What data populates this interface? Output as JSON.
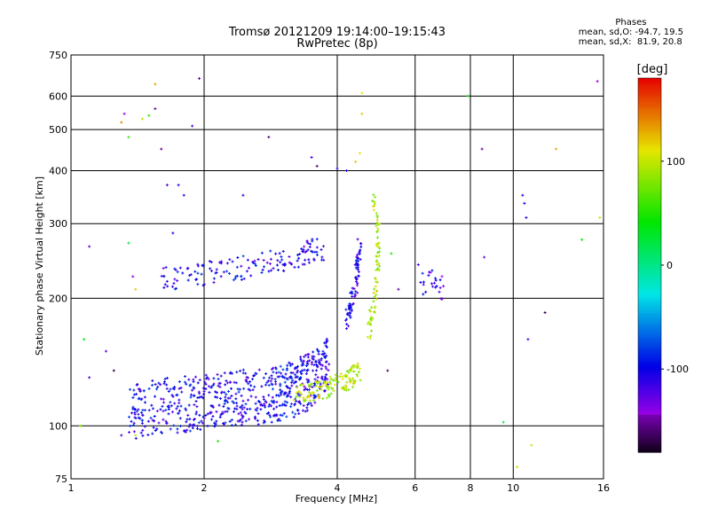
{
  "chart_data": {
    "type": "scatter",
    "title": "Tromsø 20121209 19:14:00–19:15:43",
    "subtitle": "RwPretec (8p)",
    "xlabel": "Frequency [MHz]",
    "ylabel": "Stationary phase Virtual Height [km]",
    "x_scale": "log",
    "y_scale": "log",
    "xlim": [
      1,
      16
    ],
    "ylim": [
      75,
      750
    ],
    "x_ticks": [
      1,
      2,
      4,
      6,
      8,
      10,
      16
    ],
    "y_ticks": [
      75,
      100,
      200,
      300,
      400,
      500,
      600,
      750
    ],
    "grid": true,
    "stats": {
      "heading": "Phases",
      "line_o": "mean, sd,O: -94.7, 19.5",
      "line_x": "mean, sd,X:  81.9, 20.8"
    },
    "colorbar": {
      "label": "[deg]",
      "ticks": [
        100,
        0,
        -100
      ],
      "range": [
        -180,
        180
      ],
      "colormap": "rainbow"
    },
    "series": [
      {
        "type": "band",
        "description": "E/F1 low trace",
        "points": [
          [
            1.35,
            108,
            -105
          ],
          [
            1.5,
            110,
            -100
          ],
          [
            1.7,
            112,
            -105
          ],
          [
            1.9,
            113,
            -100
          ],
          [
            2.1,
            115,
            -110
          ],
          [
            2.3,
            116,
            -100
          ],
          [
            2.5,
            117,
            -105
          ],
          [
            2.8,
            118,
            -100
          ],
          [
            3.0,
            120,
            -95
          ],
          [
            3.2,
            122,
            -100
          ],
          [
            3.4,
            126,
            -110
          ],
          [
            3.6,
            132,
            -105
          ],
          [
            3.8,
            140,
            -110
          ]
        ],
        "spread": 0.07,
        "count_per_segment": 55
      },
      {
        "type": "band",
        "description": "F1 X trace",
        "points": [
          [
            3.2,
            118,
            95
          ],
          [
            3.5,
            120,
            100
          ],
          [
            3.8,
            123,
            95
          ],
          [
            4.1,
            126,
            90
          ],
          [
            4.3,
            130,
            100
          ],
          [
            4.5,
            135,
            95
          ]
        ],
        "spread": 0.025,
        "count_per_segment": 25
      },
      {
        "type": "band",
        "description": "F2 O upper",
        "points": [
          [
            1.6,
            222,
            -110
          ],
          [
            1.9,
            226,
            -105
          ],
          [
            2.2,
            232,
            -100
          ],
          [
            2.6,
            238,
            -100
          ],
          [
            3.0,
            246,
            -110
          ],
          [
            3.4,
            256,
            -115
          ],
          [
            3.75,
            262,
            -105
          ]
        ],
        "spread": 0.03,
        "count_per_segment": 25
      },
      {
        "type": "band",
        "description": "Vertical O near 4.2-4.6 MHz",
        "points": [
          [
            4.2,
            175,
            -110
          ],
          [
            4.3,
            195,
            -100
          ],
          [
            4.4,
            215,
            -115
          ],
          [
            4.45,
            240,
            -105
          ],
          [
            4.5,
            265,
            -110
          ]
        ],
        "spread": 0.03,
        "count_per_segment": 20
      },
      {
        "type": "band",
        "description": "Vertical X near 4.7-5.0 MHz",
        "points": [
          [
            4.7,
            165,
            100
          ],
          [
            4.8,
            185,
            95
          ],
          [
            4.9,
            210,
            100
          ],
          [
            4.95,
            250,
            90
          ],
          [
            4.95,
            300,
            95
          ],
          [
            4.8,
            350,
            100
          ]
        ],
        "spread": 0.02,
        "count_per_segment": 15
      },
      {
        "type": "band",
        "description": "Scatter 6-7 MHz",
        "points": [
          [
            6.2,
            215,
            -100
          ],
          [
            6.5,
            225,
            -110
          ],
          [
            6.8,
            215,
            -120
          ],
          [
            7.0,
            200,
            -130
          ]
        ],
        "spread": 0.03,
        "count_per_segment": 8
      }
    ],
    "outliers": [
      [
        1.05,
        100,
        80
      ],
      [
        1.07,
        160,
        40
      ],
      [
        1.1,
        265,
        -130
      ],
      [
        1.1,
        130,
        -120
      ],
      [
        1.2,
        150,
        -130
      ],
      [
        1.25,
        135,
        -170
      ],
      [
        1.3,
        520,
        140
      ],
      [
        1.32,
        545,
        -140
      ],
      [
        1.35,
        480,
        60
      ],
      [
        1.35,
        270,
        20
      ],
      [
        1.38,
        225,
        -140
      ],
      [
        1.4,
        210,
        120
      ],
      [
        1.45,
        530,
        100
      ],
      [
        1.5,
        540,
        60
      ],
      [
        1.55,
        640,
        130
      ],
      [
        1.6,
        450,
        -150
      ],
      [
        1.65,
        370,
        -120
      ],
      [
        1.75,
        370,
        -110
      ],
      [
        1.8,
        350,
        -110
      ],
      [
        1.88,
        510,
        -120
      ],
      [
        1.95,
        660,
        -150
      ],
      [
        1.55,
        560,
        -150
      ],
      [
        1.7,
        285,
        -110
      ],
      [
        2.15,
        92,
        50
      ],
      [
        2.45,
        350,
        -110
      ],
      [
        2.8,
        480,
        -160
      ],
      [
        3.5,
        430,
        -120
      ],
      [
        3.6,
        410,
        -160
      ],
      [
        4.0,
        405,
        -110
      ],
      [
        4.2,
        400,
        -100
      ],
      [
        4.4,
        420,
        120
      ],
      [
        4.5,
        440,
        110
      ],
      [
        4.55,
        610,
        110
      ],
      [
        4.55,
        545,
        120
      ],
      [
        5.2,
        135,
        -160
      ],
      [
        5.3,
        255,
        50
      ],
      [
        5.5,
        210,
        -150
      ],
      [
        6.1,
        240,
        -120
      ],
      [
        6.5,
        230,
        -140
      ],
      [
        7.9,
        600,
        40
      ],
      [
        8.5,
        450,
        -150
      ],
      [
        8.6,
        250,
        -130
      ],
      [
        9.5,
        102,
        20
      ],
      [
        10.2,
        80,
        100
      ],
      [
        10.5,
        350,
        -110
      ],
      [
        10.6,
        335,
        -100
      ],
      [
        10.7,
        310,
        -110
      ],
      [
        10.8,
        160,
        -120
      ],
      [
        11.0,
        90,
        100
      ],
      [
        11.8,
        185,
        -170
      ],
      [
        12.5,
        450,
        130
      ],
      [
        14.3,
        275,
        40
      ],
      [
        15.5,
        650,
        -140
      ],
      [
        15.7,
        310,
        100
      ],
      [
        1.4,
        95,
        100
      ],
      [
        1.3,
        95,
        -120
      ]
    ]
  }
}
